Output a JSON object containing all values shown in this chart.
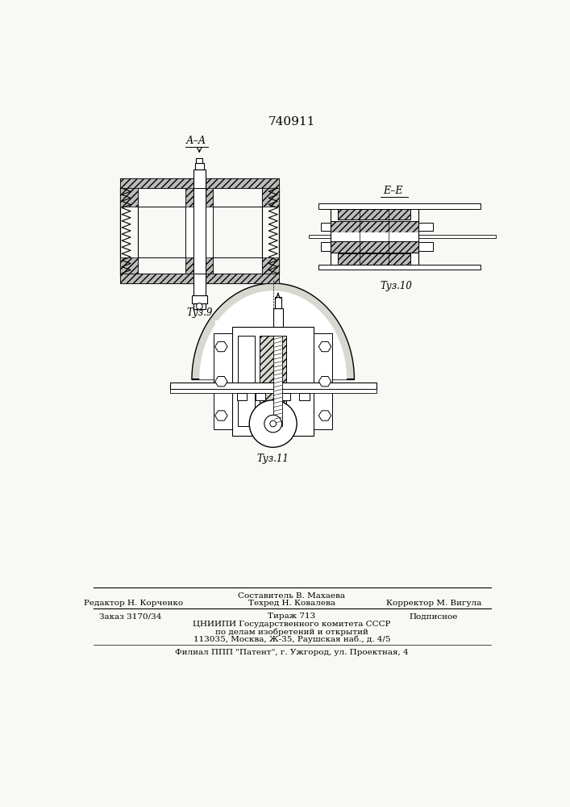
{
  "patent_number": "740911",
  "bg_color": "#f8f8f5",
  "fig9_label": "Τуз.9",
  "fig10_label": "Τуз.10",
  "fig11_label": "Τуз.11",
  "section_AA": "А–А",
  "section_EE": "Е–Е"
}
